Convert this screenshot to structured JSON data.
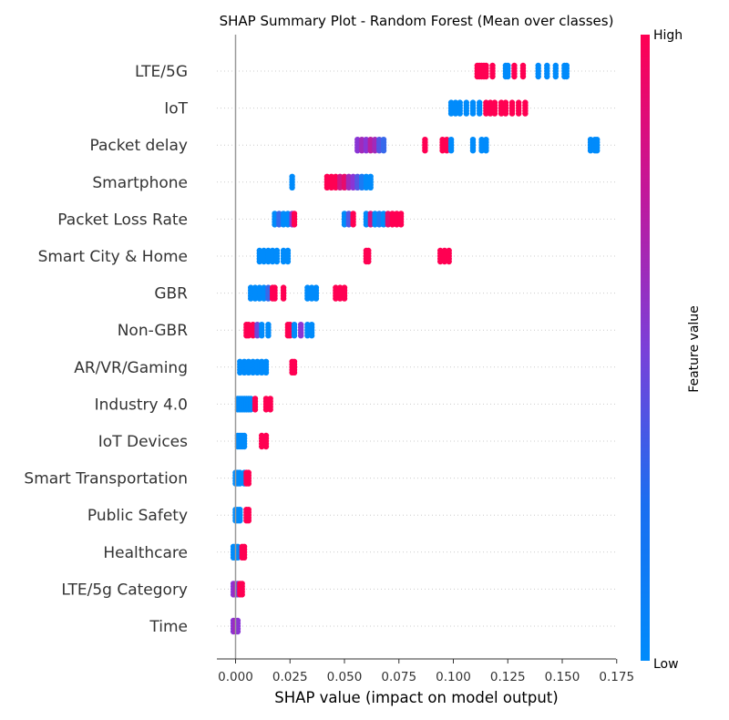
{
  "chart_data": {
    "type": "scatter",
    "subtype": "shap-beeswarm",
    "title": "SHAP Summary Plot - Random Forest (Mean over classes)",
    "xlabel": "SHAP value (impact on model output)",
    "xlim": [
      -0.008,
      0.175
    ],
    "xticks": [
      0.0,
      0.025,
      0.05,
      0.075,
      0.1,
      0.125,
      0.15,
      0.175
    ],
    "xtick_labels": [
      "0.000",
      "0.025",
      "0.050",
      "0.075",
      "0.100",
      "0.125",
      "0.150",
      "0.175"
    ],
    "colorbar": {
      "label": "Feature value",
      "high": "High",
      "low": "Low",
      "high_color": "#ff0052",
      "low_color": "#008bfb"
    },
    "features": [
      {
        "name": "LTE/5G",
        "points": [
          [
            0.111,
            1
          ],
          [
            0.112,
            1
          ],
          [
            0.113,
            1
          ],
          [
            0.114,
            1
          ],
          [
            0.115,
            1
          ],
          [
            0.118,
            1
          ],
          [
            0.124,
            0
          ],
          [
            0.125,
            0
          ],
          [
            0.128,
            1
          ],
          [
            0.132,
            1
          ],
          [
            0.139,
            0
          ],
          [
            0.143,
            0
          ],
          [
            0.147,
            0
          ],
          [
            0.151,
            0
          ],
          [
            0.152,
            0
          ]
        ]
      },
      {
        "name": "IoT",
        "points": [
          [
            0.099,
            0
          ],
          [
            0.101,
            0
          ],
          [
            0.103,
            0
          ],
          [
            0.106,
            0
          ],
          [
            0.109,
            0
          ],
          [
            0.112,
            0
          ],
          [
            0.115,
            1
          ],
          [
            0.117,
            1
          ],
          [
            0.119,
            1
          ],
          [
            0.122,
            1
          ],
          [
            0.124,
            1
          ],
          [
            0.127,
            1
          ],
          [
            0.13,
            1
          ],
          [
            0.133,
            1
          ]
        ]
      },
      {
        "name": "Packet delay",
        "points": [
          [
            0.056,
            0.5
          ],
          [
            0.058,
            0.6
          ],
          [
            0.06,
            0.5
          ],
          [
            0.062,
            0.7
          ],
          [
            0.064,
            0.6
          ],
          [
            0.066,
            0.3
          ],
          [
            0.068,
            0.2
          ],
          [
            0.087,
            1
          ],
          [
            0.095,
            1
          ],
          [
            0.097,
            1
          ],
          [
            0.099,
            0
          ],
          [
            0.109,
            0
          ],
          [
            0.113,
            0
          ],
          [
            0.115,
            0
          ],
          [
            0.163,
            0
          ],
          [
            0.165,
            0
          ],
          [
            0.166,
            0
          ]
        ]
      },
      {
        "name": "Smartphone",
        "points": [
          [
            0.026,
            0
          ],
          [
            0.042,
            1
          ],
          [
            0.044,
            1
          ],
          [
            0.046,
            1
          ],
          [
            0.048,
            0.8
          ],
          [
            0.05,
            0.9
          ],
          [
            0.052,
            0.6
          ],
          [
            0.054,
            0.5
          ],
          [
            0.056,
            0.3
          ],
          [
            0.058,
            0.1
          ],
          [
            0.06,
            0
          ],
          [
            0.062,
            0
          ]
        ]
      },
      {
        "name": "Packet Loss Rate",
        "points": [
          [
            0.018,
            0
          ],
          [
            0.02,
            0.2
          ],
          [
            0.022,
            0
          ],
          [
            0.024,
            0
          ],
          [
            0.026,
            0.5
          ],
          [
            0.027,
            1
          ],
          [
            0.05,
            0
          ],
          [
            0.052,
            0.3
          ],
          [
            0.054,
            1
          ],
          [
            0.06,
            0
          ],
          [
            0.062,
            0.8
          ],
          [
            0.064,
            0
          ],
          [
            0.066,
            0.1
          ],
          [
            0.068,
            0
          ],
          [
            0.07,
            0.9
          ],
          [
            0.072,
            1
          ],
          [
            0.074,
            1
          ],
          [
            0.076,
            1
          ]
        ]
      },
      {
        "name": "Smart City & Home",
        "points": [
          [
            0.011,
            0
          ],
          [
            0.013,
            0
          ],
          [
            0.015,
            0
          ],
          [
            0.017,
            0
          ],
          [
            0.019,
            0
          ],
          [
            0.022,
            0
          ],
          [
            0.024,
            0
          ],
          [
            0.06,
            1
          ],
          [
            0.061,
            1
          ],
          [
            0.094,
            1
          ],
          [
            0.096,
            1
          ],
          [
            0.098,
            1
          ]
        ]
      },
      {
        "name": "GBR",
        "points": [
          [
            0.007,
            0
          ],
          [
            0.009,
            0
          ],
          [
            0.011,
            0
          ],
          [
            0.013,
            0
          ],
          [
            0.015,
            0.2
          ],
          [
            0.017,
            1
          ],
          [
            0.018,
            1
          ],
          [
            0.022,
            1
          ],
          [
            0.033,
            0
          ],
          [
            0.035,
            0
          ],
          [
            0.037,
            0
          ],
          [
            0.046,
            1
          ],
          [
            0.048,
            1
          ],
          [
            0.05,
            1
          ]
        ]
      },
      {
        "name": "Non-GBR",
        "points": [
          [
            0.005,
            1
          ],
          [
            0.006,
            1
          ],
          [
            0.008,
            1
          ],
          [
            0.01,
            0.4
          ],
          [
            0.012,
            0
          ],
          [
            0.015,
            0
          ],
          [
            0.024,
            1
          ],
          [
            0.025,
            1
          ],
          [
            0.027,
            0
          ],
          [
            0.03,
            0.5
          ],
          [
            0.033,
            0
          ],
          [
            0.035,
            0
          ]
        ]
      },
      {
        "name": "AR/VR/Gaming",
        "points": [
          [
            0.002,
            0
          ],
          [
            0.004,
            0
          ],
          [
            0.006,
            0
          ],
          [
            0.008,
            0
          ],
          [
            0.01,
            0
          ],
          [
            0.012,
            0
          ],
          [
            0.014,
            0
          ],
          [
            0.026,
            1
          ],
          [
            0.027,
            1
          ]
        ]
      },
      {
        "name": "Industry 4.0",
        "points": [
          [
            0.001,
            0
          ],
          [
            0.002,
            0
          ],
          [
            0.003,
            0
          ],
          [
            0.004,
            0
          ],
          [
            0.005,
            0
          ],
          [
            0.006,
            0
          ],
          [
            0.007,
            0
          ],
          [
            0.009,
            1
          ],
          [
            0.014,
            1
          ],
          [
            0.016,
            1
          ]
        ]
      },
      {
        "name": "IoT Devices",
        "points": [
          [
            0.001,
            0
          ],
          [
            0.002,
            0
          ],
          [
            0.003,
            0
          ],
          [
            0.004,
            0
          ],
          [
            0.012,
            1
          ],
          [
            0.014,
            1
          ]
        ]
      },
      {
        "name": "Smart Transportation",
        "points": [
          [
            0.0,
            0
          ],
          [
            0.001,
            0
          ],
          [
            0.002,
            0
          ],
          [
            0.004,
            0
          ],
          [
            0.005,
            1
          ],
          [
            0.006,
            1
          ]
        ]
      },
      {
        "name": "Public Safety",
        "points": [
          [
            0.0,
            0
          ],
          [
            0.001,
            0
          ],
          [
            0.002,
            0
          ],
          [
            0.005,
            1
          ],
          [
            0.006,
            1
          ]
        ]
      },
      {
        "name": "Healthcare",
        "points": [
          [
            -0.001,
            0
          ],
          [
            0.0,
            0
          ],
          [
            0.001,
            0
          ],
          [
            0.003,
            1
          ],
          [
            0.004,
            1
          ]
        ]
      },
      {
        "name": "LTE/5g Category",
        "points": [
          [
            -0.001,
            0.5
          ],
          [
            0.0,
            0.6
          ],
          [
            0.001,
            0.4
          ],
          [
            0.002,
            1
          ],
          [
            0.003,
            1
          ]
        ]
      },
      {
        "name": "Time",
        "points": [
          [
            -0.001,
            0.5
          ],
          [
            0.0,
            0.6
          ],
          [
            0.001,
            0.5
          ]
        ]
      }
    ]
  }
}
